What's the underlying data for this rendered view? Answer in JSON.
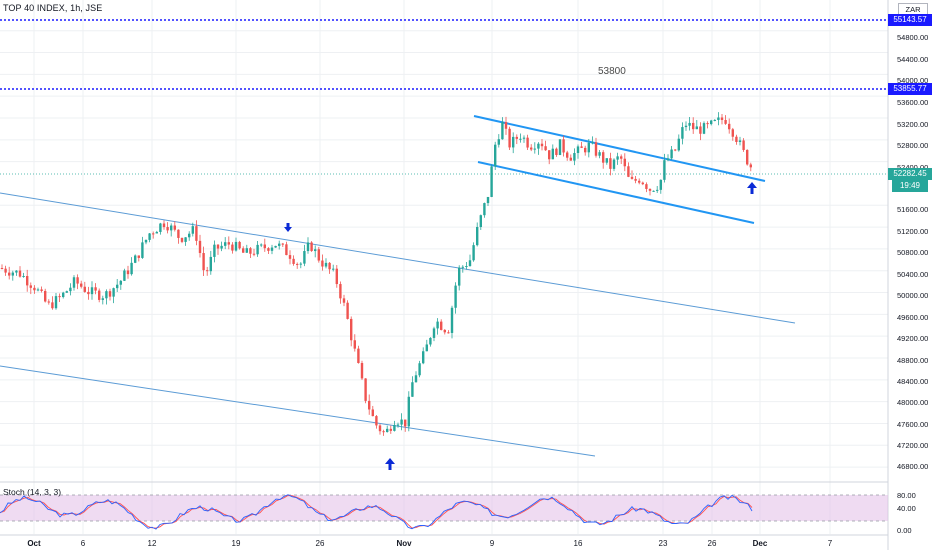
{
  "header": {
    "title": "TOP 40 INDEX, 1h, JSE",
    "currency": "ZAR"
  },
  "annotations": {
    "level_note": "53800"
  },
  "price_scale": {
    "ticks": [
      "54800.00",
      "54400.00",
      "54000.00",
      "53600.00",
      "53200.00",
      "52800.00",
      "52400.00",
      "51600.00",
      "51200.00",
      "50800.00",
      "50400.00",
      "50000.00",
      "49600.00",
      "49200.00",
      "48800.00",
      "48400.00",
      "48000.00",
      "47600.00",
      "47200.00",
      "46800.00"
    ],
    "markers": {
      "upper_level": "55143.57",
      "lower_level": "53855.77",
      "last_price": "52282.45",
      "countdown": "19:49",
      "partial_tick": "52"
    }
  },
  "time_scale": {
    "labels": [
      "Oct",
      "6",
      "12",
      "19",
      "26",
      "Nov",
      "9",
      "16",
      "23",
      "26",
      "Dec",
      "7"
    ]
  },
  "stoch": {
    "label": "Stoch (14, 3, 3)",
    "ticks": [
      "80.00",
      "40.00",
      "0.00"
    ]
  },
  "colors": {
    "up": "#26a69a",
    "down": "#ef5350",
    "trendline": "#5b9bd5",
    "channel": "#2196f3",
    "level_line": "#1a1aff",
    "arrow": "#0a2ad6",
    "stoch_fill": "#e1bee7",
    "stoch_k": "#2962ff",
    "stoch_d": "#ff5252"
  },
  "chart_data": {
    "type": "candlestick",
    "symbol": "TOP 40 INDEX",
    "interval": "1h",
    "exchange": "JSE",
    "ylim": [
      46600,
      55400
    ],
    "horizontal_levels": [
      55143.57,
      53855.77
    ],
    "last_price": 52282.45,
    "closes_sample": [
      50400,
      50300,
      49800,
      49900,
      50200,
      50000,
      50600,
      50900,
      51300,
      51100,
      50800,
      50300,
      50700,
      50900,
      50700,
      50800,
      50900,
      51000,
      50500,
      50900,
      50500,
      50000,
      49200,
      48400,
      47500,
      47600,
      48400,
      49000,
      49600,
      50400,
      51600,
      52800,
      52900,
      52700,
      52500,
      52600,
      52300,
      52100,
      52000,
      52500,
      52900,
      53100,
      53200,
      53000,
      52300
    ]
  }
}
